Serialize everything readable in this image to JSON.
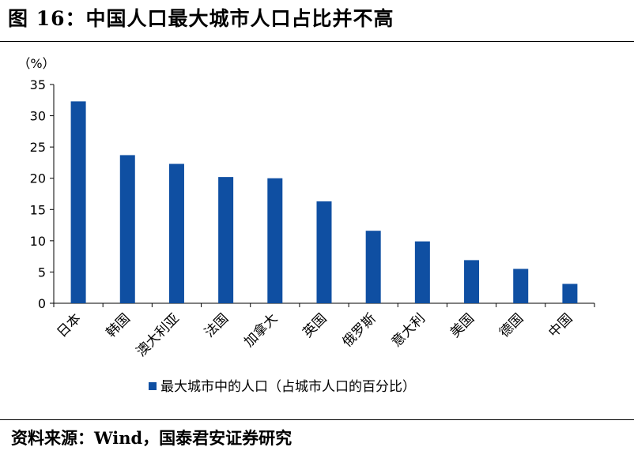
{
  "figure": {
    "title": "图 16：中国人口最大城市人口占比并不高",
    "source": "资料来源：Wind，国泰君安证券研究"
  },
  "chart_data": {
    "type": "bar",
    "unit_label": "（%）",
    "categories": [
      "日本",
      "韩国",
      "澳大利亚",
      "法国",
      "加拿大",
      "英国",
      "俄罗斯",
      "意大利",
      "美国",
      "德国",
      "中国"
    ],
    "series": [
      {
        "name": "最大城市中的人口（占城市人口的百分比）",
        "values": [
          32.3,
          23.7,
          22.3,
          20.2,
          20.0,
          16.3,
          11.6,
          9.9,
          6.9,
          5.5,
          3.1
        ],
        "color": "#0f4fa2"
      }
    ],
    "yticks": [
      0,
      5,
      10,
      15,
      20,
      25,
      30,
      35
    ],
    "ylim": [
      0,
      35
    ],
    "grid": false,
    "legend_position": "bottom"
  }
}
